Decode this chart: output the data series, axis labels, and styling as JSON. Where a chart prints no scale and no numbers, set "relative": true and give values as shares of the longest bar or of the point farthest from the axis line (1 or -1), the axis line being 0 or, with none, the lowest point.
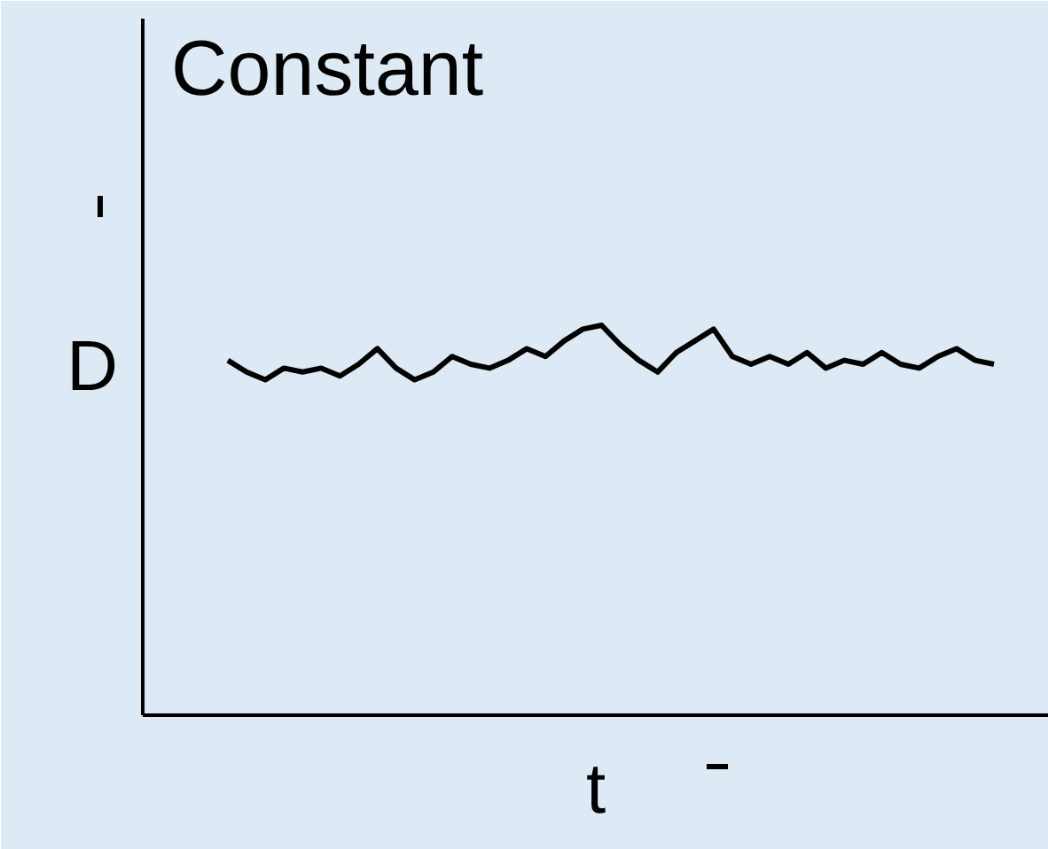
{
  "chart_data": {
    "type": "line",
    "title": "Constant",
    "xlabel": "t",
    "ylabel": "D",
    "relative": true,
    "categories": [
      null,
      null,
      null,
      null,
      null,
      null,
      null,
      null,
      null,
      null,
      null,
      null,
      null,
      null,
      null,
      null,
      null,
      null,
      null,
      null,
      null,
      null,
      null,
      null,
      null,
      null,
      null,
      null,
      null,
      null,
      null,
      null,
      null,
      null,
      null,
      null,
      null,
      null,
      null,
      null,
      null,
      null
    ],
    "series": [
      {
        "color": "#000000",
        "values": [
          0.91,
          0.88,
          0.86,
          0.89,
          0.88,
          0.89,
          0.87,
          0.9,
          0.94,
          0.89,
          0.86,
          0.88,
          0.92,
          0.9,
          0.89,
          0.91,
          0.94,
          0.92,
          0.96,
          0.99,
          1.0,
          0.95,
          0.91,
          0.88,
          0.93,
          0.96,
          0.99,
          0.92,
          0.9,
          0.92,
          0.9,
          0.93,
          0.89,
          0.91,
          0.9,
          0.93,
          0.9,
          0.89,
          0.92,
          0.94,
          0.91,
          0.9
        ]
      }
    ],
    "marker": "none",
    "line_style": "solid"
  }
}
